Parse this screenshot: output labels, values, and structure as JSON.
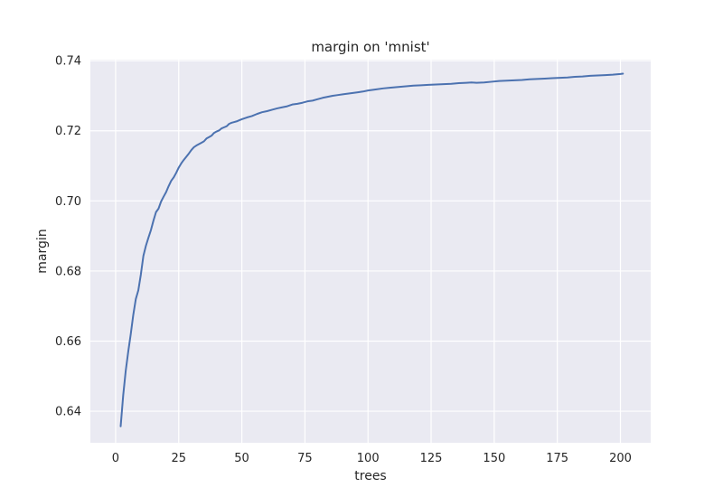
{
  "chart_data": {
    "type": "line",
    "title": "margin on 'mnist'",
    "xlabel": "trees",
    "ylabel": "margin",
    "xlim": [
      -10,
      212
    ],
    "ylim": [
      0.631,
      0.7403
    ],
    "xticks": [
      0,
      25,
      50,
      75,
      100,
      125,
      150,
      175,
      200
    ],
    "yticks": [
      0.64,
      0.66,
      0.68,
      0.7,
      0.72,
      0.74
    ],
    "xtick_labels": [
      "0",
      "25",
      "50",
      "75",
      "100",
      "125",
      "150",
      "175",
      "200"
    ],
    "ytick_labels": [
      "0.64",
      "0.66",
      "0.68",
      "0.70",
      "0.72",
      "0.74"
    ],
    "grid": true,
    "background": "#eaeaf2",
    "grid_color": "#ffffff",
    "series_color": "#4c72b0",
    "series": [
      {
        "x": [
          2,
          3,
          4,
          5,
          6,
          7,
          8,
          9,
          10,
          11,
          12,
          13,
          14,
          15,
          16,
          17,
          18,
          19,
          20,
          21,
          22,
          23,
          24,
          25,
          26,
          27,
          28,
          29,
          30,
          31,
          32,
          33,
          34,
          35,
          36,
          37,
          38,
          39,
          40,
          41,
          42,
          43,
          44,
          45,
          46,
          47,
          48,
          49,
          50,
          52,
          54,
          56,
          58,
          60,
          62,
          64,
          66,
          68,
          70,
          72,
          74,
          76,
          78,
          80,
          82,
          84,
          86,
          88,
          90,
          92,
          94,
          96,
          98,
          100,
          103,
          106,
          109,
          112,
          115,
          118,
          121,
          124,
          127,
          130,
          133,
          136,
          139,
          141,
          143,
          146,
          149,
          152,
          155,
          158,
          161,
          164,
          167,
          170,
          173,
          176,
          179,
          182,
          185,
          188,
          191,
          194,
          197,
          200,
          201
        ],
        "y": [
          0.6357,
          0.6445,
          0.6515,
          0.657,
          0.662,
          0.6675,
          0.672,
          0.6745,
          0.679,
          0.6843,
          0.6872,
          0.6895,
          0.6917,
          0.6944,
          0.6968,
          0.6978,
          0.6998,
          0.7012,
          0.7025,
          0.7042,
          0.7057,
          0.7067,
          0.708,
          0.7095,
          0.7107,
          0.7117,
          0.7126,
          0.7135,
          0.7145,
          0.7153,
          0.7158,
          0.7162,
          0.7166,
          0.717,
          0.7178,
          0.7182,
          0.7186,
          0.7194,
          0.7198,
          0.7201,
          0.7207,
          0.721,
          0.7213,
          0.722,
          0.7223,
          0.7225,
          0.7227,
          0.723,
          0.7233,
          0.7238,
          0.7242,
          0.7248,
          0.7253,
          0.7256,
          0.726,
          0.7264,
          0.7267,
          0.727,
          0.7275,
          0.7277,
          0.728,
          0.7284,
          0.7286,
          0.729,
          0.7294,
          0.7297,
          0.73,
          0.7302,
          0.7304,
          0.7306,
          0.7308,
          0.731,
          0.7312,
          0.7315,
          0.7318,
          0.7321,
          0.7323,
          0.7325,
          0.7327,
          0.7329,
          0.733,
          0.7331,
          0.7332,
          0.7333,
          0.7334,
          0.7336,
          0.7337,
          0.7338,
          0.7337,
          0.7338,
          0.734,
          0.7342,
          0.7343,
          0.7344,
          0.7345,
          0.7347,
          0.7348,
          0.7349,
          0.735,
          0.7351,
          0.7352,
          0.7354,
          0.7355,
          0.7357,
          0.7358,
          0.7359,
          0.736,
          0.7362,
          0.7363
        ]
      }
    ]
  }
}
